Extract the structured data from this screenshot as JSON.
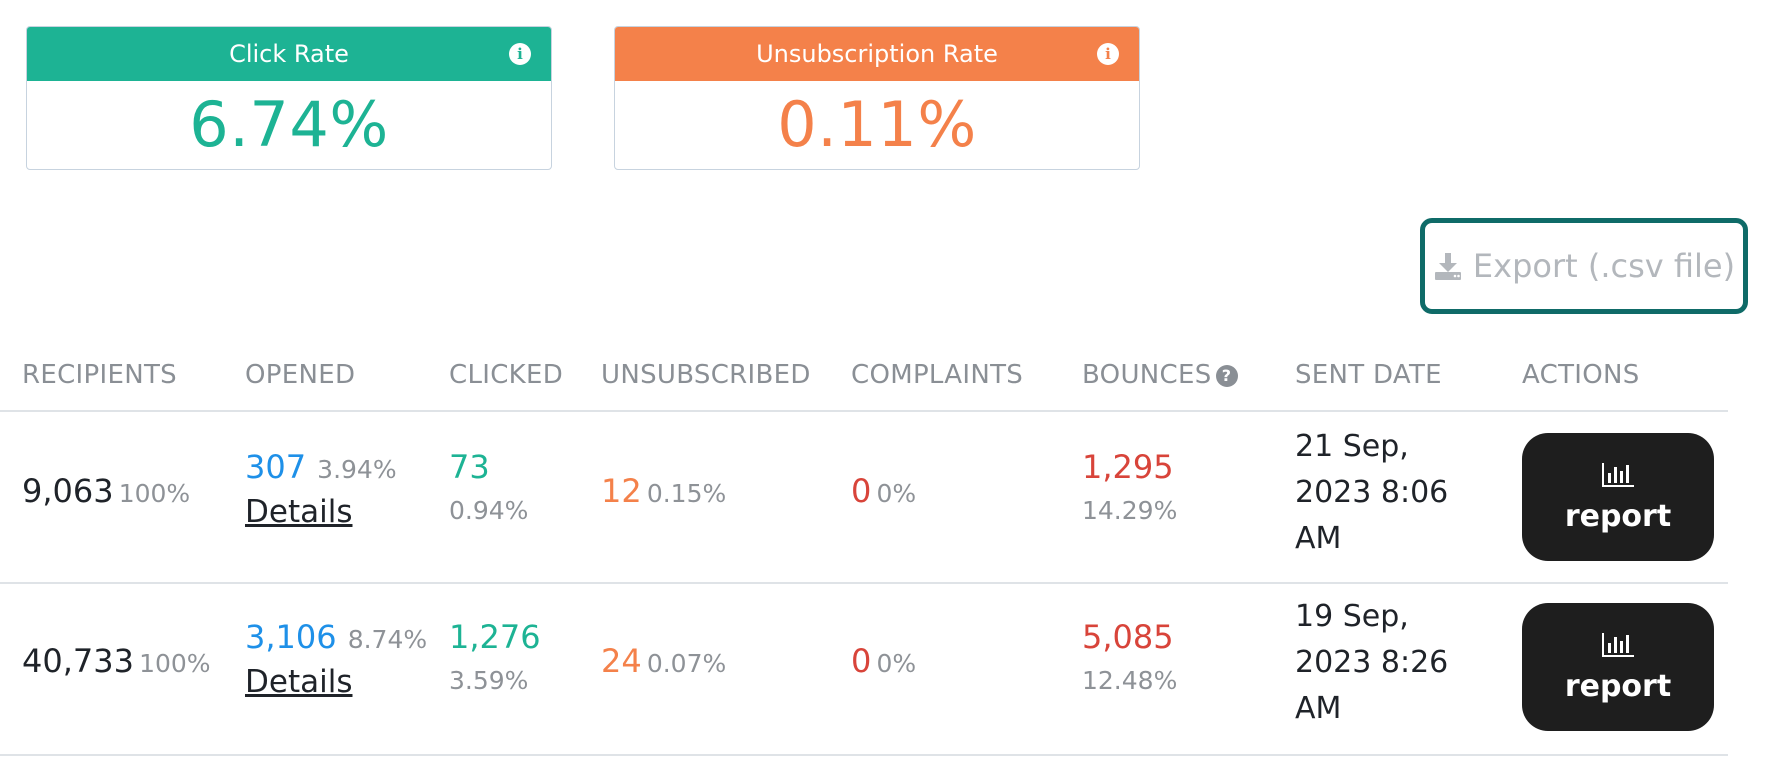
{
  "cards": {
    "click": {
      "title": "Click Rate",
      "value": "6.74%",
      "color": "#1db394"
    },
    "unsubscription": {
      "title": "Unsubscription Rate",
      "value": "0.11%",
      "color": "#f4814a"
    }
  },
  "export": {
    "label": "Export (.csv file)",
    "icon": "download-icon"
  },
  "table": {
    "headers": {
      "recipients": "RECIPIENTS",
      "opened": "OPENED",
      "clicked": "CLICKED",
      "unsubscribed": "UNSUBSCRIBED",
      "complaints": "COMPLAINTS",
      "bounces": "BOUNCES",
      "sent_date": "SENT DATE",
      "actions": "ACTIONS"
    },
    "details_label": "Details",
    "report_label": "report",
    "rows": [
      {
        "recipients": "9,063",
        "recipients_pct": "100%",
        "opened": "307",
        "opened_pct": "3.94%",
        "clicked": "73",
        "clicked_pct": "0.94%",
        "unsubscribed": "12",
        "unsubscribed_pct": "0.15%",
        "complaints": "0",
        "complaints_pct": "0%",
        "bounces": "1,295",
        "bounces_pct": "14.29%",
        "sent_date": "21 Sep, 2023 8:06 AM"
      },
      {
        "recipients": "40,733",
        "recipients_pct": "100%",
        "opened": "3,106",
        "opened_pct": "8.74%",
        "clicked": "1,276",
        "clicked_pct": "3.59%",
        "unsubscribed": "24",
        "unsubscribed_pct": "0.07%",
        "complaints": "0",
        "complaints_pct": "0%",
        "bounces": "5,085",
        "bounces_pct": "12.48%",
        "sent_date": "19 Sep, 2023 8:26 AM"
      }
    ]
  }
}
